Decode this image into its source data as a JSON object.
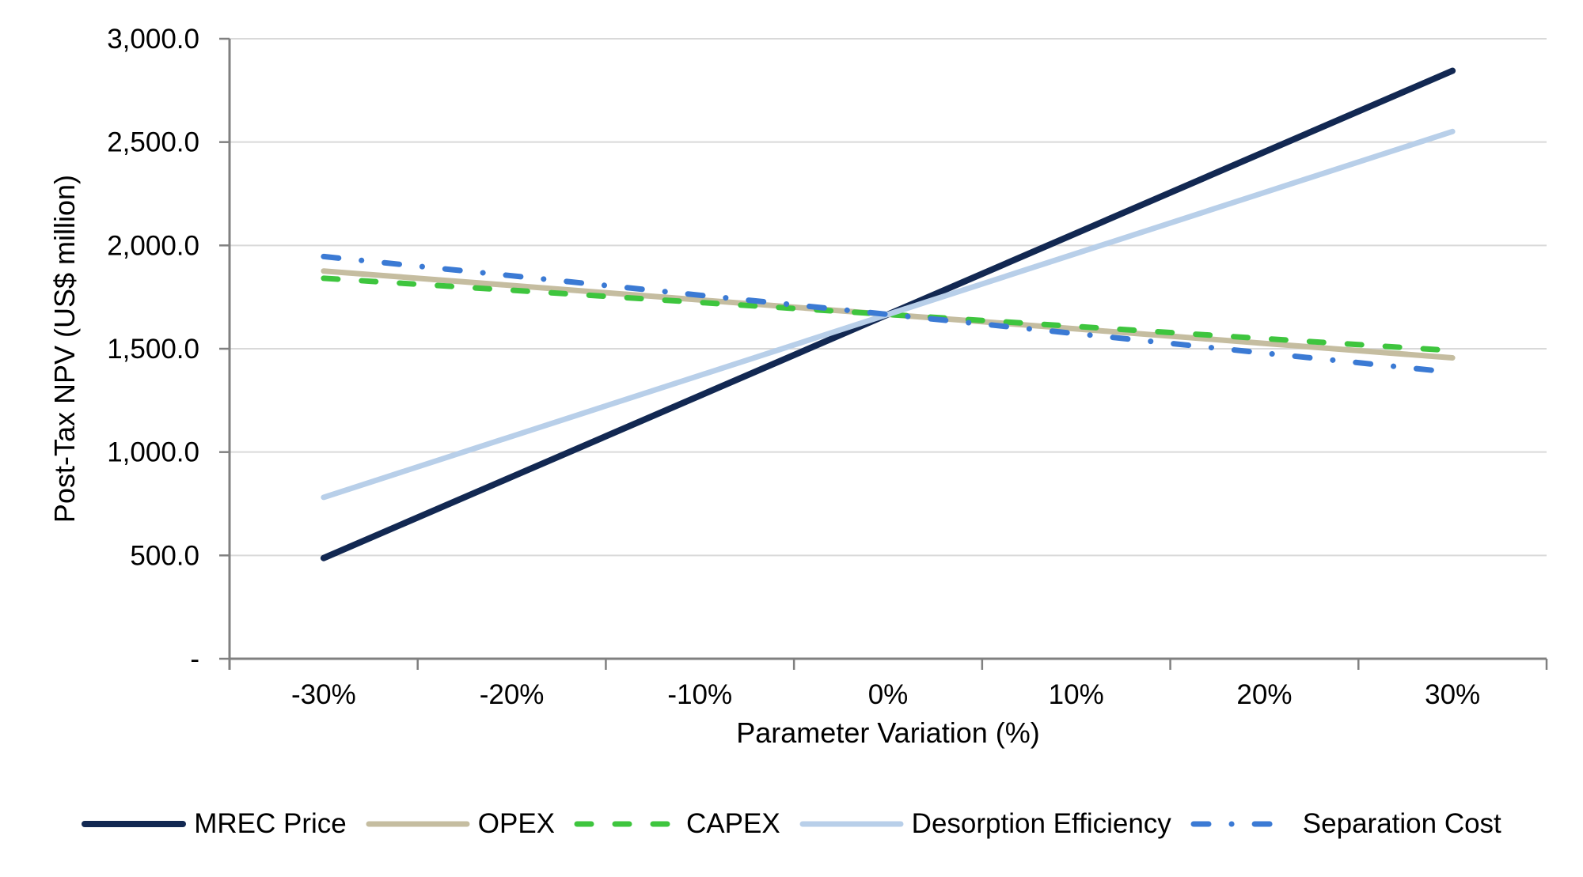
{
  "chart_data": {
    "type": "line",
    "title": "",
    "xlabel": "Parameter Variation (%)",
    "ylabel": "Post-Tax NPV (US$ million)",
    "categories": [
      "-30%",
      "-20%",
      "-10%",
      "0%",
      "10%",
      "20%",
      "30%"
    ],
    "ylim": [
      0,
      3000
    ],
    "ytick_step": 500,
    "ytick_labels": [
      "-",
      "500.0",
      "1,000.0",
      "1,500.0",
      "2,000.0",
      "2,500.0",
      "3,000.0"
    ],
    "grid": "horizontal-only",
    "legend_position": "bottom",
    "axis_color": "#808080",
    "gridline_color": "#d9d9d9",
    "text_color": "#000000",
    "series": [
      {
        "name": "MREC Price",
        "color": "#122852",
        "line_style": "solid",
        "line_width": 8,
        "values": [
          487,
          880,
          1273,
          1666,
          2059,
          2452,
          2845
        ]
      },
      {
        "name": "OPEX",
        "color": "#c5bda0",
        "line_style": "solid",
        "line_width": 7,
        "values": [
          1876,
          1806,
          1736,
          1666,
          1596,
          1526,
          1456
        ]
      },
      {
        "name": "CAPEX",
        "color": "#3ec53e",
        "line_style": "dashed",
        "line_width": 7,
        "values": [
          1841,
          1783,
          1724,
          1666,
          1608,
          1549,
          1491
        ]
      },
      {
        "name": "Desorption Efficiency",
        "color": "#b8cfe9",
        "line_style": "solid",
        "line_width": 7,
        "values": [
          781,
          1076,
          1371,
          1666,
          1961,
          2256,
          2551
        ]
      },
      {
        "name": "Separation Cost",
        "color": "#3b7ad4",
        "line_style": "dash-dot",
        "line_width": 7,
        "values": [
          1946,
          1853,
          1759,
          1666,
          1573,
          1479,
          1386
        ]
      }
    ]
  }
}
